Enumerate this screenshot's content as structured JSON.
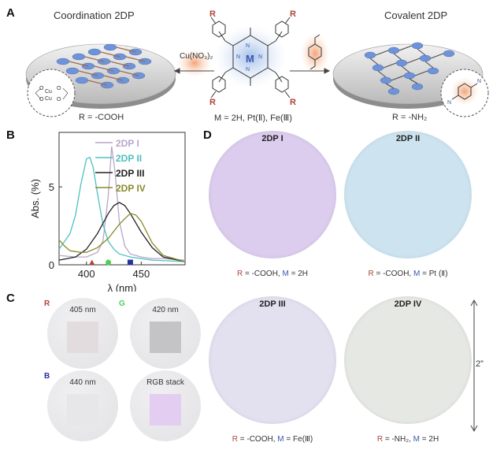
{
  "panelA": {
    "letter": "A",
    "left_title": "Coordination 2DP",
    "right_title": "Covalent 2DP",
    "reagent_left": "Cu(NO₃)₂",
    "metal_label": "M = 2H, Pt(Ⅱ), Fe(Ⅲ)",
    "left_r": "R = -COOH",
    "right_r": "R = -NH₂",
    "r_symbol": "R",
    "m_symbol": "M",
    "colors": {
      "porphyrin_glow": "#a9c3ea",
      "reagent_glow": "#f4a77a",
      "node": "#6f93d8",
      "linker": "#8a5a3a"
    }
  },
  "panelB": {
    "letter": "B",
    "chart_data": {
      "type": "line",
      "xlabel": "λ (nm)",
      "ylabel": "Abs. (%)",
      "xlim": [
        375,
        490
      ],
      "ylim": [
        0,
        8.5
      ],
      "xticks": [
        "400",
        "450"
      ],
      "yticks": [
        "0",
        "5"
      ],
      "series": [
        {
          "name": "2DP I",
          "color": "#b9a6c9",
          "x": [
            375,
            390,
            400,
            410,
            415,
            420,
            423,
            426,
            430,
            435,
            440,
            450,
            460,
            470,
            490
          ],
          "y": [
            0.6,
            0.5,
            0.5,
            0.8,
            1.5,
            4.5,
            7.6,
            6.0,
            2.8,
            1.2,
            0.7,
            0.5,
            0.4,
            0.4,
            0.3
          ]
        },
        {
          "name": "2DP II",
          "color": "#4cc0c0",
          "x": [
            375,
            385,
            390,
            395,
            400,
            403,
            406,
            410,
            415,
            420,
            425,
            430,
            440,
            450,
            460,
            490
          ],
          "y": [
            1.0,
            2.0,
            3.2,
            5.2,
            6.8,
            6.9,
            6.3,
            4.6,
            2.6,
            1.5,
            1.0,
            0.7,
            0.5,
            0.4,
            0.3,
            0.2
          ]
        },
        {
          "name": "2DP III",
          "color": "#222222",
          "x": [
            375,
            390,
            400,
            410,
            420,
            425,
            430,
            435,
            440,
            450,
            460,
            470,
            490
          ],
          "y": [
            0.3,
            0.5,
            1.0,
            2.0,
            3.3,
            3.8,
            4.0,
            3.8,
            3.3,
            2.1,
            1.1,
            0.5,
            0.2
          ]
        },
        {
          "name": "2DP IV",
          "color": "#8a8a2a",
          "x": [
            375,
            380,
            385,
            395,
            400,
            410,
            420,
            430,
            440,
            445,
            450,
            460,
            470,
            490
          ],
          "y": [
            1.6,
            1.2,
            0.9,
            0.8,
            0.8,
            1.1,
            1.7,
            2.6,
            3.3,
            3.2,
            2.8,
            1.4,
            0.6,
            0.2
          ]
        }
      ],
      "markers": [
        {
          "x": 405,
          "color": "#b0443a",
          "shape": "triangle"
        },
        {
          "x": 420,
          "color": "#4ccf55",
          "shape": "circle"
        },
        {
          "x": 440,
          "color": "#2a2fa0",
          "shape": "square"
        }
      ]
    }
  },
  "panelC": {
    "letter": "C",
    "tiles": [
      {
        "channel": "R",
        "channel_color": "#b0443a",
        "wavelength": "405 nm",
        "square_color": "#e3dcdf"
      },
      {
        "channel": "G",
        "channel_color": "#4ccf55",
        "wavelength": "420 nm",
        "square_color": "#c4c4c6"
      },
      {
        "channel": "B",
        "channel_color": "#2a2fa0",
        "wavelength": "440 nm",
        "square_color": "#e7e7e9"
      },
      {
        "channel": "",
        "channel_color": "#ffffff",
        "wavelength": "RGB stack",
        "square_color": "#e3cdf0"
      }
    ]
  },
  "panelD": {
    "letter": "D",
    "disks": [
      {
        "title": "2DP I",
        "color": "#dccdee",
        "caption_r": "R",
        "caption_a": " = -COOH, ",
        "caption_m": "M",
        "caption_b": " = 2H"
      },
      {
        "title": "2DP II",
        "color": "#cde4f0",
        "caption_r": "R",
        "caption_a": " = -COOH, ",
        "caption_m": "M",
        "caption_b": " = Pt (Ⅱ)"
      },
      {
        "title": "2DP III",
        "color": "#e3e1ef",
        "caption_r": "R",
        "caption_a": " = -COOH, ",
        "caption_m": "M",
        "caption_b": " = Fe(Ⅲ)"
      },
      {
        "title": "2DP IV",
        "color": "#e6e8e3",
        "caption_r": "R",
        "caption_a": " = -NH₂, ",
        "caption_m": "M",
        "caption_b": " = 2H"
      }
    ],
    "scale_label": "2”"
  }
}
